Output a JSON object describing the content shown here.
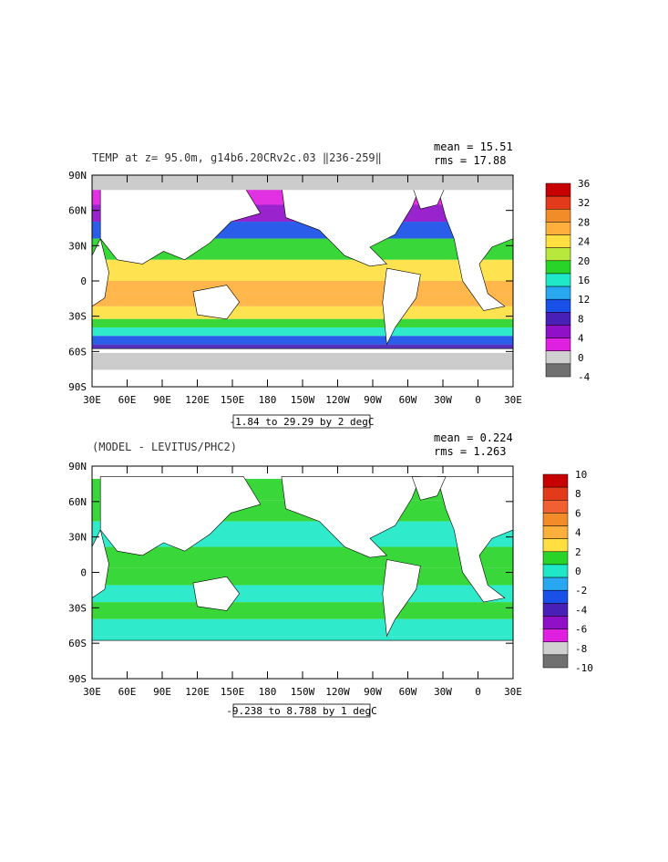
{
  "panels": [
    {
      "title": "TEMP at z=  95.0m, g14b6.20CRv2c.03 ‖236-259‖",
      "mean": "mean = 15.51",
      "rms": "rms = 17.88",
      "range_label": "-1.84 to 29.29 by 2 degC",
      "lat_labels": [
        "90N",
        "60N",
        "30N",
        "0",
        "30S",
        "60S",
        "90S"
      ],
      "lon_labels": [
        "30E",
        "60E",
        "90E",
        "120E",
        "150E",
        "180",
        "150W",
        "120W",
        "90W",
        "60W",
        "30W",
        "0",
        "30E"
      ],
      "colorbar_labels": [
        "36",
        "32",
        "28",
        "24",
        "20",
        "16",
        "12",
        "8",
        "4",
        "0",
        "-4"
      ],
      "colorbar_colors": [
        "#c80000",
        "#e43a1c",
        "#f28c28",
        "#ffb03c",
        "#ffe040",
        "#b8e83c",
        "#28d428",
        "#1ee8c8",
        "#28a8f0",
        "#1850e8",
        "#4820b8",
        "#9010c8",
        "#e020e0",
        "#d0d0d0",
        "#707070"
      ]
    },
    {
      "title": "(MODEL - LEVITUS/PHC2)",
      "mean": "mean = 0.224",
      "rms": "rms = 1.263",
      "range_label": "-9.238 to 8.788 by 1 degC",
      "lat_labels": [
        "90N",
        "60N",
        "30N",
        "0",
        "30S",
        "60S",
        "90S"
      ],
      "lon_labels": [
        "30E",
        "60E",
        "90E",
        "120E",
        "150E",
        "180",
        "150W",
        "120W",
        "90W",
        "60W",
        "30W",
        "0",
        "30E"
      ],
      "colorbar_labels": [
        "10",
        "8",
        "6",
        "4",
        "2",
        "0",
        "-2",
        "-4",
        "-6",
        "-8",
        "-10"
      ],
      "colorbar_colors": [
        "#c80000",
        "#e43a1c",
        "#f06030",
        "#f28c28",
        "#ffb03c",
        "#ffe040",
        "#28d428",
        "#1ee8c8",
        "#28a8f0",
        "#1850e8",
        "#4820b8",
        "#9010c8",
        "#e020e0",
        "#d0d0d0",
        "#707070"
      ]
    }
  ]
}
